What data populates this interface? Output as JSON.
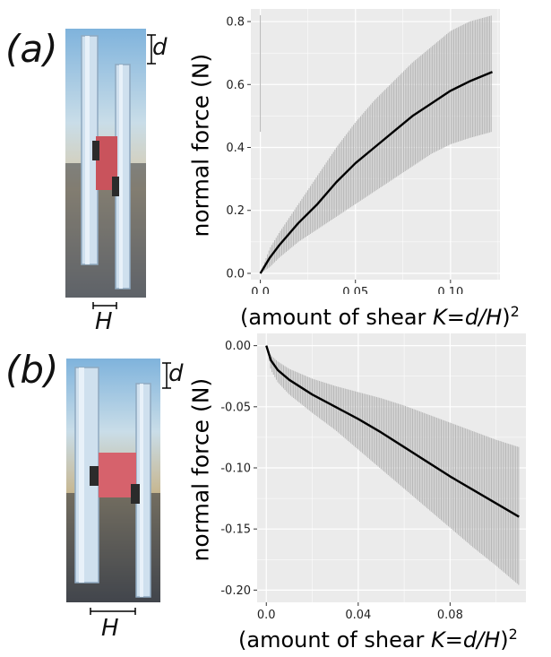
{
  "panels": {
    "a": {
      "letter": "(a)",
      "d_label": "d",
      "H_label": "H"
    },
    "b": {
      "letter": "(b)",
      "d_label": "d",
      "H_label": "H"
    }
  },
  "colors": {
    "panel_bg": "#ebebeb",
    "grid": "#ffffff",
    "band": "#b5b5b5",
    "line": "#000000"
  },
  "chart_data": [
    {
      "type": "line",
      "ylabel": "normal force (N)",
      "xlabel_parts": [
        "(amount of shear ",
        "K",
        "=",
        "d/H",
        ")",
        "2"
      ],
      "xlim": [
        -0.005,
        0.126
      ],
      "ylim": [
        -0.02,
        0.84
      ],
      "xticks": [
        0.0,
        0.05,
        0.1
      ],
      "xtick_labels": [
        "0.0",
        "0.05",
        "0.10"
      ],
      "yticks": [
        0.0,
        0.2,
        0.4,
        0.6,
        0.8
      ],
      "ytick_labels": [
        "0.0",
        "0.2",
        "0.4",
        "0.6",
        "0.8"
      ],
      "grid": true,
      "series": [
        {
          "x": [
            0.0,
            0.005,
            0.01,
            0.02,
            0.03,
            0.04,
            0.05,
            0.06,
            0.07,
            0.08,
            0.09,
            0.1,
            0.11,
            0.122
          ],
          "mean": [
            0.0,
            0.05,
            0.09,
            0.16,
            0.22,
            0.29,
            0.35,
            0.4,
            0.45,
            0.5,
            0.54,
            0.58,
            0.61,
            0.64
          ],
          "lower": [
            0.0,
            0.02,
            0.05,
            0.1,
            0.14,
            0.18,
            0.22,
            0.26,
            0.3,
            0.34,
            0.38,
            0.41,
            0.43,
            0.45
          ],
          "upper": [
            0.0,
            0.08,
            0.13,
            0.22,
            0.31,
            0.4,
            0.48,
            0.55,
            0.61,
            0.67,
            0.72,
            0.77,
            0.8,
            0.82
          ]
        }
      ]
    },
    {
      "type": "line",
      "ylabel": "normal force (N)",
      "xlabel_parts": [
        "(amount of shear ",
        "K",
        "=",
        "d/H",
        ")",
        "2"
      ],
      "xlim": [
        -0.004,
        0.113
      ],
      "ylim": [
        -0.21,
        0.01
      ],
      "xticks": [
        0.0,
        0.04,
        0.08
      ],
      "xtick_labels": [
        "0.0",
        "0.04",
        "0.08"
      ],
      "yticks": [
        0.0,
        -0.05,
        -0.1,
        -0.15,
        -0.2
      ],
      "ytick_labels": [
        "0.00",
        "-0.05",
        "-0.10",
        "-0.15",
        "-0.20"
      ],
      "grid": true,
      "series": [
        {
          "x": [
            0.0,
            0.002,
            0.005,
            0.01,
            0.02,
            0.03,
            0.04,
            0.05,
            0.06,
            0.07,
            0.08,
            0.09,
            0.1,
            0.11
          ],
          "mean": [
            0.0,
            -0.012,
            -0.02,
            -0.028,
            -0.04,
            -0.05,
            -0.06,
            -0.071,
            -0.083,
            -0.095,
            -0.107,
            -0.118,
            -0.129,
            -0.14
          ],
          "lower": [
            0.0,
            -0.02,
            -0.03,
            -0.04,
            -0.055,
            -0.069,
            -0.085,
            -0.101,
            -0.117,
            -0.133,
            -0.149,
            -0.165,
            -0.18,
            -0.196
          ],
          "upper": [
            0.0,
            -0.008,
            -0.013,
            -0.019,
            -0.027,
            -0.033,
            -0.038,
            -0.043,
            -0.049,
            -0.056,
            -0.063,
            -0.07,
            -0.077,
            -0.083
          ]
        }
      ]
    }
  ]
}
